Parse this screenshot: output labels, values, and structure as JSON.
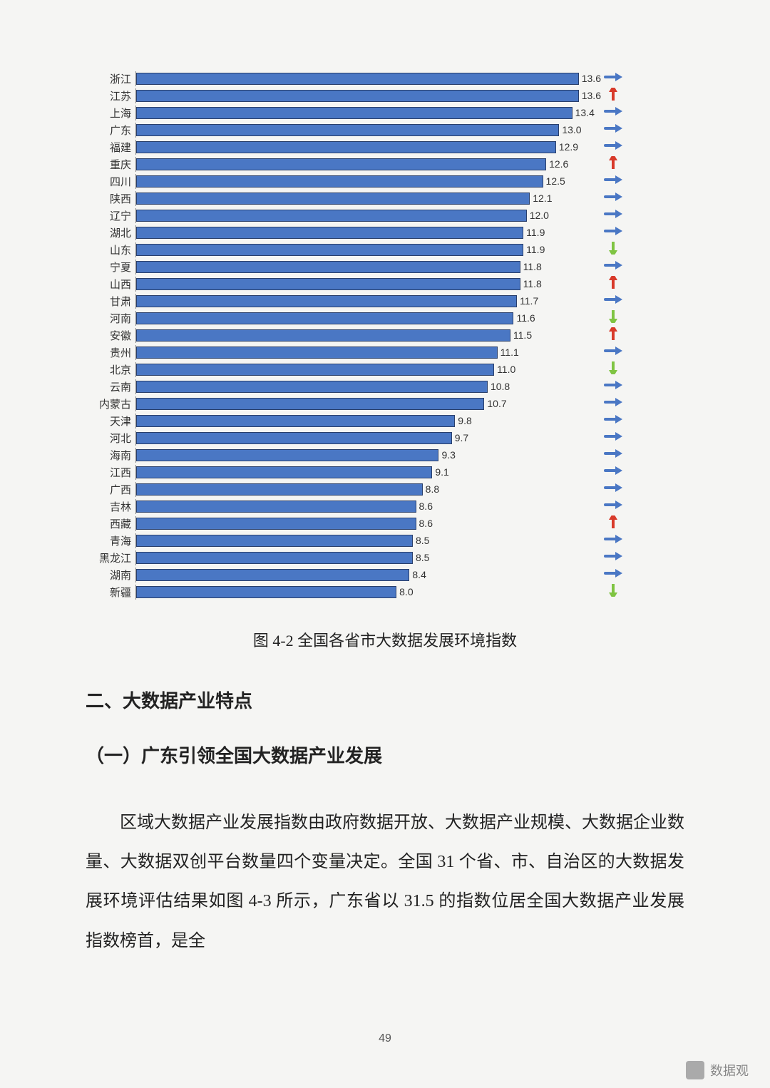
{
  "chart": {
    "type": "bar-horizontal",
    "xmax": 14.0,
    "bar_fill": "#4a77c4",
    "bar_stroke": "#2a3f6a",
    "label_color": "#333",
    "rows": [
      {
        "name": "浙江",
        "value": 13.6,
        "trend": "right"
      },
      {
        "name": "江苏",
        "value": 13.6,
        "trend": "up"
      },
      {
        "name": "上海",
        "value": 13.4,
        "trend": "right"
      },
      {
        "name": "广东",
        "value": 13.0,
        "trend": "right"
      },
      {
        "name": "福建",
        "value": 12.9,
        "trend": "right"
      },
      {
        "name": "重庆",
        "value": 12.6,
        "trend": "up"
      },
      {
        "name": "四川",
        "value": 12.5,
        "trend": "right"
      },
      {
        "name": "陕西",
        "value": 12.1,
        "trend": "right"
      },
      {
        "name": "辽宁",
        "value": 12.0,
        "trend": "right"
      },
      {
        "name": "湖北",
        "value": 11.9,
        "trend": "right"
      },
      {
        "name": "山东",
        "value": 11.9,
        "trend": "down"
      },
      {
        "name": "宁夏",
        "value": 11.8,
        "trend": "right"
      },
      {
        "name": "山西",
        "value": 11.8,
        "trend": "up"
      },
      {
        "name": "甘肃",
        "value": 11.7,
        "trend": "right"
      },
      {
        "name": "河南",
        "value": 11.6,
        "trend": "down"
      },
      {
        "name": "安徽",
        "value": 11.5,
        "trend": "up"
      },
      {
        "name": "贵州",
        "value": 11.1,
        "trend": "right"
      },
      {
        "name": "北京",
        "value": 11.0,
        "trend": "down"
      },
      {
        "name": "云南",
        "value": 10.8,
        "trend": "right"
      },
      {
        "name": "内蒙古",
        "value": 10.7,
        "trend": "right"
      },
      {
        "name": "天津",
        "value": 9.8,
        "trend": "right"
      },
      {
        "name": "河北",
        "value": 9.7,
        "trend": "right"
      },
      {
        "name": "海南",
        "value": 9.3,
        "trend": "right"
      },
      {
        "name": "江西",
        "value": 9.1,
        "trend": "right"
      },
      {
        "name": "广西",
        "value": 8.8,
        "trend": "right"
      },
      {
        "name": "吉林",
        "value": 8.6,
        "trend": "right"
      },
      {
        "name": "西藏",
        "value": 8.6,
        "trend": "up"
      },
      {
        "name": "青海",
        "value": 8.5,
        "trend": "right"
      },
      {
        "name": "黑龙江",
        "value": 8.5,
        "trend": "right"
      },
      {
        "name": "湖南",
        "value": 8.4,
        "trend": "right"
      },
      {
        "name": "新疆",
        "value": 8.0,
        "trend": "down"
      }
    ],
    "trend_colors": {
      "right": "#4a77c4",
      "up": "#d83a2a",
      "down": "#7fc442"
    }
  },
  "caption": "图 4-2 全国各省市大数据发展环境指数",
  "heading2": "二、大数据产业特点",
  "heading3": "（一）广东引领全国大数据产业发展",
  "paragraph": "区域大数据产业发展指数由政府数据开放、大数据产业规模、大数据企业数量、大数据双创平台数量四个变量决定。全国 31 个省、市、自治区的大数据发展环境评估结果如图 4-3 所示，广东省以 31.5 的指数位居全国大数据产业发展指数榜首，是全",
  "page_number": "49",
  "brand": "数据观"
}
